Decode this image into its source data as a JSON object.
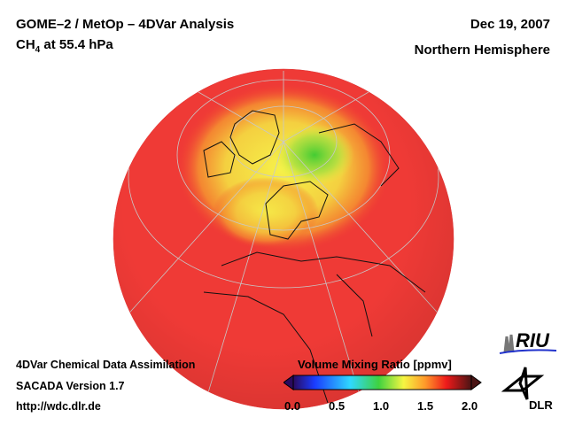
{
  "header": {
    "title": "GOME–2 / MetOp – 4DVar Analysis",
    "species_main": "CH",
    "species_sub": "4",
    "species_rest": " at 55.4 hPa",
    "date": "Dec 19, 2007",
    "region": "Northern Hemisphere"
  },
  "footer": {
    "line1": "4DVar Chemical Data Assimilation",
    "line2": "SACADA Version 1.7",
    "line3": "http://wdc.dlr.de"
  },
  "colorbar": {
    "title": "Volume Mixing Ratio [ppmv]",
    "ticks": [
      "0.0",
      "0.5",
      "1.0",
      "1.5",
      "2.0"
    ],
    "min": 0.0,
    "max": 2.0,
    "colors": [
      "#2a0a5e",
      "#1a3cff",
      "#2fd8ff",
      "#3fd23f",
      "#f5f542",
      "#ff9a2a",
      "#ee1a1a",
      "#4a1414"
    ]
  },
  "logos": {
    "riu": "RIU",
    "dlr": "DLR"
  }
}
